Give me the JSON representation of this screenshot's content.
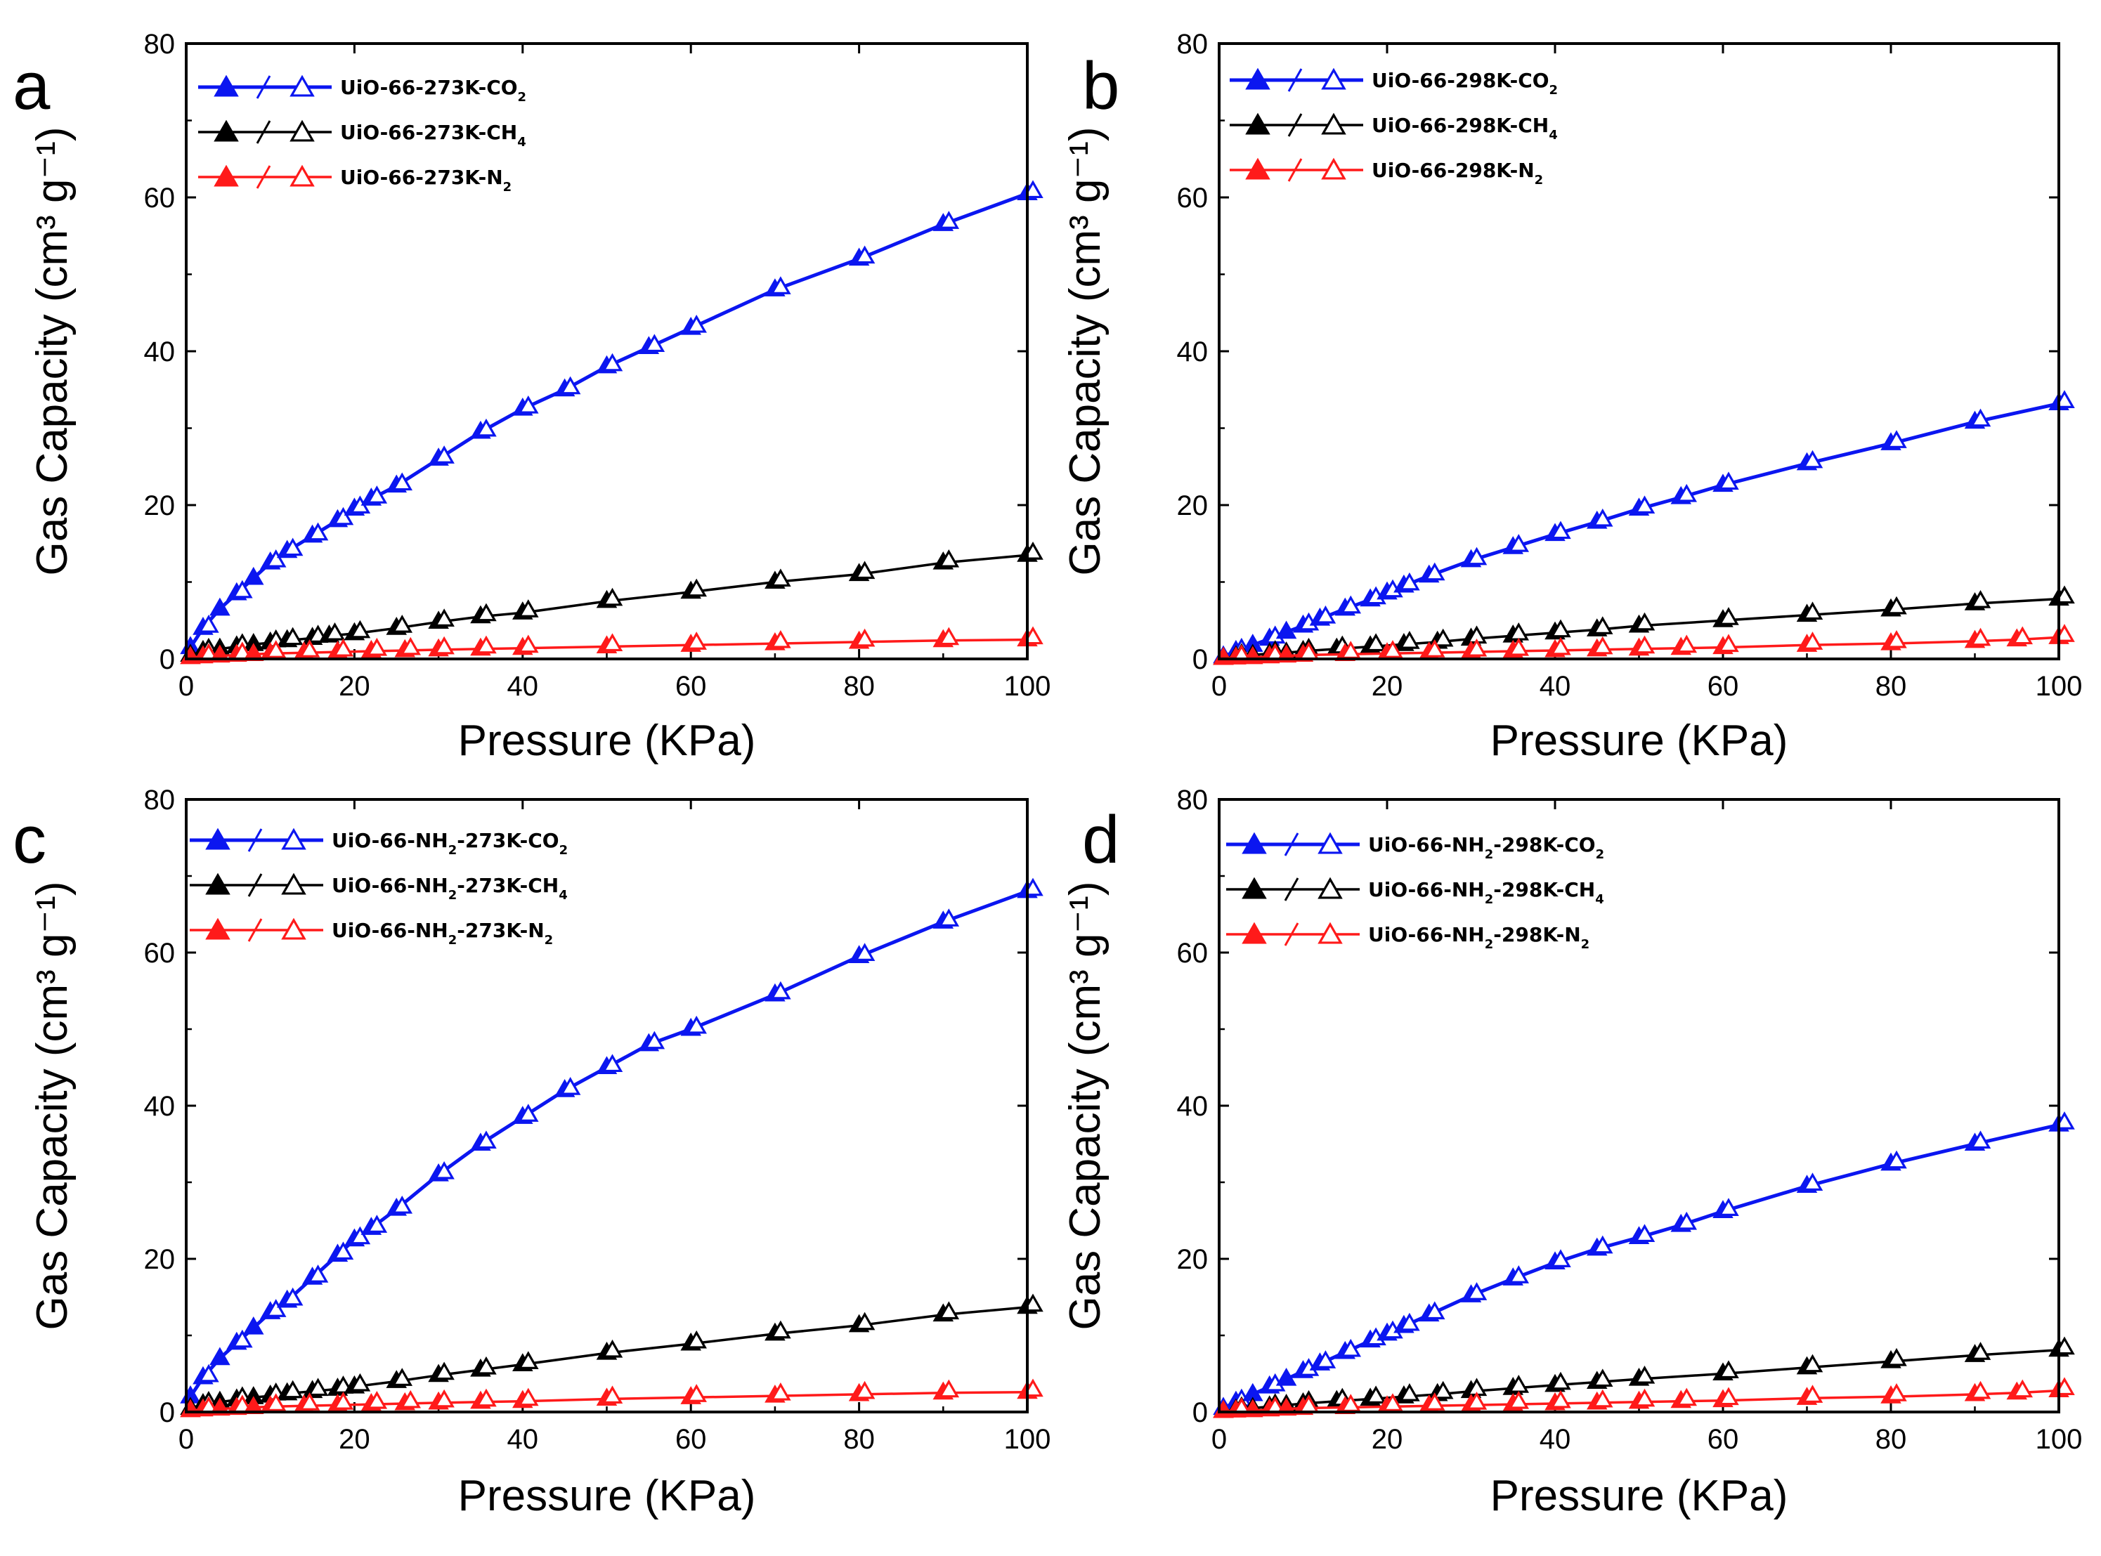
{
  "colors": {
    "co2": "#0b16f0",
    "ch4": "#000000",
    "n2": "#ff1a1a"
  },
  "chart_data": [
    {
      "type": "line",
      "panel": "a",
      "xlim": [
        0,
        100
      ],
      "ylim": [
        0,
        80
      ],
      "xticks": [
        "0",
        "20",
        "40",
        "60",
        "80",
        "100"
      ],
      "yticks": [
        "0",
        "20",
        "40",
        "60",
        "80"
      ],
      "xlabel": "Pressure (KPa)",
      "ylabel": "Gas Capacity (cm³ g⁻¹)",
      "series": [
        {
          "name": "UiO-66-273K-CO2",
          "legend_main": "UiO-66-273K-CO",
          "legend_sub": "2",
          "color_key": "co2",
          "x": [
            0.5,
            2,
            4,
            6,
            8,
            10,
            12,
            15,
            18,
            20,
            22,
            25,
            30,
            35,
            40,
            45,
            50,
            55,
            60,
            70,
            80,
            90,
            100
          ],
          "y": [
            1.5,
            4,
            6.5,
            8.5,
            10.5,
            12.5,
            14,
            16,
            18,
            19.5,
            20.8,
            22.5,
            26,
            29.5,
            32.5,
            35,
            38,
            40.5,
            43,
            48,
            52,
            56.5,
            60.5
          ]
        },
        {
          "name": "UiO-66-273K-CH4",
          "legend_main": "UiO-66-273K-CH",
          "legend_sub": "4",
          "color_key": "ch4",
          "x": [
            0.5,
            2,
            4,
            6,
            8,
            10,
            12,
            15,
            17,
            20,
            25,
            30,
            35,
            40,
            50,
            60,
            70,
            80,
            90,
            100
          ],
          "y": [
            0.5,
            1,
            1.3,
            1.6,
            1.9,
            2.1,
            2.4,
            2.7,
            3,
            3.3,
            4,
            4.8,
            5.5,
            6,
            7.5,
            8.7,
            10,
            11,
            12.5,
            13.5
          ]
        },
        {
          "name": "UiO-66-273K-N2",
          "legend_main": "UiO-66-273K-N",
          "legend_sub": "2",
          "color_key": "n2",
          "x": [
            0.5,
            2,
            4,
            6,
            8,
            10,
            14,
            18,
            22,
            26,
            30,
            35,
            40,
            50,
            60,
            70,
            80,
            90,
            100
          ],
          "y": [
            0.2,
            0.3,
            0.4,
            0.5,
            0.6,
            0.7,
            0.8,
            0.9,
            1,
            1.1,
            1.2,
            1.3,
            1.4,
            1.6,
            1.8,
            2,
            2.2,
            2.4,
            2.5
          ]
        }
      ]
    },
    {
      "type": "line",
      "panel": "b",
      "xlim": [
        0,
        100
      ],
      "ylim": [
        0,
        80
      ],
      "xticks": [
        "0",
        "20",
        "40",
        "60",
        "80",
        "100"
      ],
      "yticks": [
        "0",
        "20",
        "40",
        "60",
        "80"
      ],
      "xlabel": "Pressure (KPa)",
      "ylabel": "Gas Capacity (cm³ g⁻¹)",
      "series": [
        {
          "name": "UiO-66-298K-CO2",
          "legend_main": "UiO-66-298K-CO",
          "legend_sub": "2",
          "color_key": "co2",
          "x": [
            0.5,
            2,
            4,
            6,
            8,
            10,
            12,
            15,
            18,
            20,
            22,
            25,
            30,
            35,
            40,
            45,
            50,
            55,
            60,
            70,
            80,
            90,
            100
          ],
          "y": [
            0.3,
            1,
            1.8,
            2.6,
            3.5,
            4.3,
            5.2,
            6.5,
            7.7,
            8.6,
            9.5,
            10.8,
            12.8,
            14.5,
            16.2,
            17.8,
            19.5,
            21,
            22.6,
            25.4,
            28,
            30.8,
            33.2
          ]
        },
        {
          "name": "UiO-66-298K-CH4",
          "legend_main": "UiO-66-298K-CH",
          "legend_sub": "4",
          "color_key": "ch4",
          "x": [
            0.5,
            2,
            4,
            6,
            8,
            10,
            14,
            18,
            22,
            26,
            30,
            35,
            40,
            45,
            50,
            60,
            70,
            80,
            90,
            100
          ],
          "y": [
            0.1,
            0.3,
            0.5,
            0.7,
            0.8,
            1,
            1.3,
            1.6,
            1.9,
            2.2,
            2.6,
            3,
            3.4,
            3.8,
            4.3,
            5,
            5.7,
            6.4,
            7.2,
            7.8
          ]
        },
        {
          "name": "UiO-66-298K-N2",
          "legend_main": "UiO-66-298K-N",
          "legend_sub": "2",
          "color_key": "n2",
          "x": [
            0.5,
            2,
            4,
            6,
            8,
            10,
            15,
            20,
            25,
            30,
            35,
            40,
            45,
            50,
            55,
            60,
            70,
            80,
            90,
            95,
            100
          ],
          "y": [
            0.1,
            0.15,
            0.2,
            0.3,
            0.4,
            0.5,
            0.6,
            0.7,
            0.8,
            0.9,
            1,
            1.1,
            1.2,
            1.3,
            1.4,
            1.5,
            1.8,
            2,
            2.3,
            2.5,
            2.8
          ]
        }
      ]
    },
    {
      "type": "line",
      "panel": "c",
      "xlim": [
        0,
        100
      ],
      "ylim": [
        0,
        80
      ],
      "xticks": [
        "0",
        "20",
        "40",
        "60",
        "80",
        "100"
      ],
      "yticks": [
        "0",
        "20",
        "40",
        "60",
        "80"
      ],
      "xlabel": "Pressure (KPa)",
      "ylabel": "Gas Capacity (cm³ g⁻¹)",
      "series": [
        {
          "name": "UiO-66-NH2-273K-CO2",
          "legend_main": "UiO-66-NH",
          "legend_sub": "2",
          "legend_rest": "-273K-CO",
          "legend_sub2": "2",
          "color_key": "co2",
          "x": [
            0.5,
            2,
            4,
            6,
            8,
            10,
            12,
            15,
            18,
            20,
            22,
            25,
            30,
            35,
            40,
            45,
            50,
            55,
            60,
            70,
            80,
            90,
            100
          ],
          "y": [
            2,
            4.5,
            7,
            9,
            11,
            13,
            14.5,
            17.5,
            20.5,
            22.5,
            24,
            26.5,
            31,
            35,
            38.5,
            42,
            45,
            48,
            50,
            54.5,
            59.5,
            64,
            68
          ]
        },
        {
          "name": "UiO-66-NH2-273K-CH4",
          "legend_main": "UiO-66-NH",
          "legend_sub": "2",
          "legend_rest": "-273K-CH",
          "legend_sub2": "4",
          "color_key": "ch4",
          "x": [
            0.5,
            2,
            4,
            6,
            8,
            10,
            12,
            15,
            18,
            20,
            25,
            30,
            35,
            40,
            50,
            60,
            70,
            80,
            90,
            100
          ],
          "y": [
            0.5,
            1,
            1.3,
            1.6,
            1.9,
            2.1,
            2.4,
            2.7,
            3,
            3.3,
            4,
            4.8,
            5.5,
            6.2,
            7.7,
            8.9,
            10.2,
            11.3,
            12.7,
            13.7
          ]
        },
        {
          "name": "UiO-66-NH2-273K-N2",
          "legend_main": "UiO-66-NH",
          "legend_sub": "2",
          "legend_rest": "-273K-N",
          "legend_sub2": "2",
          "color_key": "n2",
          "x": [
            0.5,
            2,
            4,
            6,
            8,
            10,
            14,
            18,
            22,
            26,
            30,
            35,
            40,
            50,
            60,
            70,
            80,
            90,
            100
          ],
          "y": [
            0.2,
            0.3,
            0.4,
            0.5,
            0.6,
            0.7,
            0.8,
            0.9,
            1,
            1.1,
            1.2,
            1.3,
            1.4,
            1.7,
            1.9,
            2.1,
            2.3,
            2.5,
            2.6
          ]
        }
      ]
    },
    {
      "type": "line",
      "panel": "d",
      "xlim": [
        0,
        100
      ],
      "ylim": [
        0,
        80
      ],
      "xticks": [
        "0",
        "20",
        "40",
        "60",
        "80",
        "100"
      ],
      "yticks": [
        "0",
        "20",
        "40",
        "60",
        "80"
      ],
      "xlabel": "Pressure (KPa)",
      "ylabel": "Gas Capacity (cm³ g⁻¹)",
      "series": [
        {
          "name": "UiO-66-NH2-298K-CO2",
          "legend_main": "UiO-66-NH",
          "legend_sub": "2",
          "legend_rest": "-298K-CO",
          "legend_sub2": "2",
          "color_key": "co2",
          "x": [
            0.5,
            2,
            4,
            6,
            8,
            10,
            12,
            15,
            18,
            20,
            22,
            25,
            30,
            35,
            40,
            45,
            50,
            55,
            60,
            70,
            80,
            90,
            100
          ],
          "y": [
            0.5,
            1.3,
            2.3,
            3.3,
            4.3,
            5.3,
            6.3,
            7.8,
            9.3,
            10.2,
            11.2,
            12.7,
            15.2,
            17.4,
            19.5,
            21.3,
            22.8,
            24.4,
            26.2,
            29.5,
            32.4,
            35,
            37.5
          ]
        },
        {
          "name": "UiO-66-NH2-298K-CH4",
          "legend_main": "UiO-66-NH",
          "legend_sub": "2",
          "legend_rest": "-298K-CH",
          "legend_sub2": "4",
          "color_key": "ch4",
          "x": [
            0.5,
            2,
            4,
            6,
            8,
            10,
            14,
            18,
            22,
            26,
            30,
            35,
            40,
            45,
            50,
            60,
            70,
            80,
            90,
            100
          ],
          "y": [
            0.1,
            0.3,
            0.5,
            0.7,
            0.9,
            1.1,
            1.4,
            1.7,
            2,
            2.3,
            2.7,
            3.1,
            3.5,
            3.9,
            4.3,
            5,
            5.8,
            6.6,
            7.4,
            8.1
          ]
        },
        {
          "name": "UiO-66-NH2-298K-N2",
          "legend_main": "UiO-66-NH",
          "legend_sub": "2",
          "legend_rest": "-298K-N",
          "legend_sub2": "2",
          "color_key": "n2",
          "x": [
            0.5,
            2,
            4,
            6,
            8,
            10,
            15,
            20,
            25,
            30,
            35,
            40,
            45,
            50,
            55,
            60,
            70,
            80,
            90,
            95,
            100
          ],
          "y": [
            0.1,
            0.15,
            0.2,
            0.3,
            0.4,
            0.5,
            0.6,
            0.7,
            0.8,
            0.9,
            1,
            1.1,
            1.2,
            1.3,
            1.4,
            1.5,
            1.8,
            2,
            2.3,
            2.5,
            2.8
          ]
        }
      ]
    }
  ]
}
